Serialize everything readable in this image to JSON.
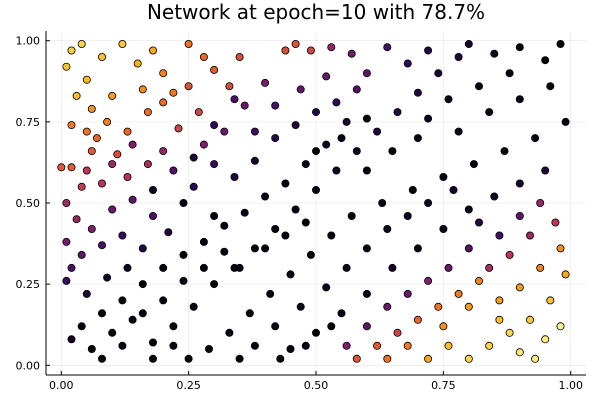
{
  "chart_data": {
    "type": "scatter",
    "title": "Network at epoch=10 with 78.7%",
    "xlabel": "",
    "ylabel": "",
    "xlim": [
      -0.03,
      1.03
    ],
    "ylim": [
      -0.03,
      1.03
    ],
    "xticks": [
      0.0,
      0.25,
      0.5,
      0.75,
      1.0
    ],
    "xtick_labels": [
      "0.00",
      "0.25",
      "0.50",
      "0.75",
      "1.00"
    ],
    "yticks": [
      0.0,
      0.25,
      0.5,
      0.75,
      1.0
    ],
    "ytick_labels": [
      "0.00",
      "0.25",
      "0.50",
      "0.75",
      "1.00"
    ],
    "grid": true,
    "legend": "none",
    "colormap": "inferno",
    "colormap_stops": [
      "#000004",
      "#320a5e",
      "#781c6d",
      "#bc3754",
      "#ed6925",
      "#fbb61a",
      "#fcffa4"
    ],
    "points": [
      [
        0.02,
        0.97,
        0.88
      ],
      [
        0.04,
        0.99,
        0.9
      ],
      [
        0.01,
        0.92,
        0.86
      ],
      [
        0.05,
        0.88,
        0.84
      ],
      [
        0.08,
        0.95,
        0.86
      ],
      [
        0.12,
        0.99,
        0.87
      ],
      [
        0.15,
        0.93,
        0.82
      ],
      [
        0.18,
        0.97,
        0.8
      ],
      [
        0.2,
        0.9,
        0.72
      ],
      [
        0.25,
        0.99,
        0.68
      ],
      [
        0.28,
        0.95,
        0.66
      ],
      [
        0.3,
        0.91,
        0.63
      ],
      [
        0.22,
        0.84,
        0.7
      ],
      [
        0.16,
        0.85,
        0.74
      ],
      [
        0.1,
        0.83,
        0.78
      ],
      [
        0.06,
        0.79,
        0.76
      ],
      [
        0.03,
        0.83,
        0.85
      ],
      [
        0.02,
        0.74,
        0.7
      ],
      [
        0.05,
        0.72,
        0.69
      ],
      [
        0.09,
        0.75,
        0.71
      ],
      [
        0.13,
        0.72,
        0.66
      ],
      [
        0.17,
        0.78,
        0.67
      ],
      [
        0.2,
        0.81,
        0.67
      ],
      [
        0.25,
        0.86,
        0.6
      ],
      [
        0.33,
        0.86,
        0.58
      ],
      [
        0.35,
        0.95,
        0.58
      ],
      [
        0.27,
        0.78,
        0.55
      ],
      [
        0.23,
        0.73,
        0.55
      ],
      [
        0.06,
        0.66,
        0.62
      ],
      [
        0.11,
        0.65,
        0.58
      ],
      [
        0.0,
        0.61,
        0.62
      ],
      [
        0.02,
        0.61,
        0.62
      ],
      [
        0.04,
        0.55,
        0.52
      ],
      [
        0.08,
        0.56,
        0.5
      ],
      [
        0.13,
        0.58,
        0.48
      ],
      [
        0.17,
        0.62,
        0.45
      ],
      [
        0.2,
        0.66,
        0.4
      ],
      [
        0.28,
        0.68,
        0.35
      ],
      [
        0.32,
        0.72,
        0.3
      ],
      [
        0.36,
        0.8,
        0.3
      ],
      [
        0.4,
        0.87,
        0.34
      ],
      [
        0.44,
        0.97,
        0.58
      ],
      [
        0.46,
        0.99,
        0.6
      ],
      [
        0.49,
        0.97,
        0.55
      ],
      [
        0.53,
        0.98,
        0.4
      ],
      [
        0.57,
        0.96,
        0.32
      ],
      [
        0.6,
        0.9,
        0.27
      ],
      [
        0.58,
        0.85,
        0.25
      ],
      [
        0.52,
        0.89,
        0.3
      ],
      [
        0.47,
        0.85,
        0.28
      ],
      [
        0.42,
        0.8,
        0.22
      ],
      [
        0.38,
        0.72,
        0.2
      ],
      [
        0.01,
        0.5,
        0.42
      ],
      [
        0.03,
        0.45,
        0.4
      ],
      [
        0.06,
        0.42,
        0.35
      ],
      [
        0.1,
        0.48,
        0.3
      ],
      [
        0.14,
        0.51,
        0.27
      ],
      [
        0.18,
        0.46,
        0.22
      ],
      [
        0.01,
        0.38,
        0.33
      ],
      [
        0.04,
        0.34,
        0.28
      ],
      [
        0.08,
        0.37,
        0.22
      ],
      [
        0.12,
        0.4,
        0.18
      ],
      [
        0.16,
        0.36,
        0.12
      ],
      [
        0.21,
        0.41,
        0.1
      ],
      [
        0.02,
        0.3,
        0.22
      ],
      [
        0.01,
        0.26,
        0.18
      ],
      [
        0.05,
        0.22,
        0.1
      ],
      [
        0.09,
        0.27,
        0.08
      ],
      [
        0.13,
        0.3,
        0.05
      ],
      [
        0.22,
        0.6,
        0.25
      ],
      [
        0.26,
        0.55,
        0.15
      ],
      [
        0.3,
        0.62,
        0.18
      ],
      [
        0.34,
        0.58,
        0.1
      ],
      [
        0.38,
        0.63,
        0.08
      ],
      [
        0.42,
        0.7,
        0.12
      ],
      [
        0.46,
        0.74,
        0.1
      ],
      [
        0.5,
        0.78,
        0.12
      ],
      [
        0.54,
        0.81,
        0.15
      ],
      [
        0.56,
        0.75,
        0.08
      ],
      [
        0.52,
        0.68,
        0.05
      ],
      [
        0.48,
        0.62,
        0.04
      ],
      [
        0.44,
        0.56,
        0.03
      ],
      [
        0.4,
        0.52,
        0.04
      ],
      [
        0.36,
        0.47,
        0.03
      ],
      [
        0.32,
        0.43,
        0.02
      ],
      [
        0.28,
        0.38,
        0.02
      ],
      [
        0.24,
        0.34,
        0.02
      ],
      [
        0.2,
        0.3,
        0.02
      ],
      [
        0.16,
        0.25,
        0.02
      ],
      [
        0.12,
        0.2,
        0.02
      ],
      [
        0.08,
        0.16,
        0.02
      ],
      [
        0.04,
        0.12,
        0.03
      ],
      [
        0.02,
        0.08,
        0.04
      ],
      [
        0.06,
        0.05,
        0.02
      ],
      [
        0.1,
        0.1,
        0.02
      ],
      [
        0.14,
        0.14,
        0.02
      ],
      [
        0.18,
        0.07,
        0.02
      ],
      [
        0.22,
        0.12,
        0.02
      ],
      [
        0.26,
        0.18,
        0.02
      ],
      [
        0.3,
        0.25,
        0.02
      ],
      [
        0.34,
        0.3,
        0.02
      ],
      [
        0.38,
        0.36,
        0.02
      ],
      [
        0.42,
        0.42,
        0.02
      ],
      [
        0.46,
        0.48,
        0.02
      ],
      [
        0.5,
        0.54,
        0.03
      ],
      [
        0.54,
        0.6,
        0.05
      ],
      [
        0.58,
        0.66,
        0.06
      ],
      [
        0.62,
        0.72,
        0.1
      ],
      [
        0.66,
        0.78,
        0.12
      ],
      [
        0.7,
        0.84,
        0.1
      ],
      [
        0.74,
        0.9,
        0.08
      ],
      [
        0.78,
        0.95,
        0.1
      ],
      [
        0.64,
        0.98,
        0.22
      ],
      [
        0.68,
        0.93,
        0.15
      ],
      [
        0.72,
        0.97,
        0.12
      ],
      [
        0.8,
        0.99,
        0.08
      ],
      [
        0.85,
        0.96,
        0.05
      ],
      [
        0.9,
        0.98,
        0.03
      ],
      [
        0.95,
        0.94,
        0.02
      ],
      [
        0.98,
        0.99,
        0.02
      ],
      [
        0.88,
        0.9,
        0.02
      ],
      [
        0.82,
        0.86,
        0.02
      ],
      [
        0.76,
        0.82,
        0.04
      ],
      [
        0.72,
        0.76,
        0.05
      ],
      [
        0.78,
        0.72,
        0.03
      ],
      [
        0.84,
        0.78,
        0.02
      ],
      [
        0.9,
        0.82,
        0.02
      ],
      [
        0.96,
        0.86,
        0.02
      ],
      [
        0.99,
        0.75,
        0.02
      ],
      [
        0.93,
        0.7,
        0.02
      ],
      [
        0.87,
        0.66,
        0.02
      ],
      [
        0.81,
        0.62,
        0.02
      ],
      [
        0.75,
        0.58,
        0.02
      ],
      [
        0.69,
        0.54,
        0.02
      ],
      [
        0.63,
        0.5,
        0.02
      ],
      [
        0.57,
        0.46,
        0.02
      ],
      [
        0.53,
        0.4,
        0.02
      ],
      [
        0.49,
        0.34,
        0.02
      ],
      [
        0.45,
        0.28,
        0.02
      ],
      [
        0.41,
        0.22,
        0.02
      ],
      [
        0.37,
        0.16,
        0.02
      ],
      [
        0.33,
        0.1,
        0.02
      ],
      [
        0.29,
        0.05,
        0.02
      ],
      [
        0.25,
        0.02,
        0.02
      ],
      [
        0.35,
        0.02,
        0.02
      ],
      [
        0.45,
        0.05,
        0.02
      ],
      [
        0.5,
        0.1,
        0.02
      ],
      [
        0.55,
        0.16,
        0.03
      ],
      [
        0.6,
        0.22,
        0.04
      ],
      [
        0.65,
        0.3,
        0.05
      ],
      [
        0.7,
        0.36,
        0.03
      ],
      [
        0.75,
        0.42,
        0.03
      ],
      [
        0.8,
        0.48,
        0.04
      ],
      [
        0.85,
        0.52,
        0.06
      ],
      [
        0.9,
        0.56,
        0.08
      ],
      [
        0.95,
        0.6,
        0.1
      ],
      [
        0.42,
        0.12,
        0.03
      ],
      [
        0.47,
        0.18,
        0.03
      ],
      [
        0.52,
        0.24,
        0.04
      ],
      [
        0.56,
        0.3,
        0.03
      ],
      [
        0.6,
        0.36,
        0.03
      ],
      [
        0.64,
        0.42,
        0.04
      ],
      [
        0.68,
        0.46,
        0.05
      ],
      [
        0.72,
        0.5,
        0.06
      ],
      [
        0.77,
        0.54,
        0.08
      ],
      [
        0.82,
        0.44,
        0.12
      ],
      [
        0.86,
        0.4,
        0.2
      ],
      [
        0.9,
        0.46,
        0.28
      ],
      [
        0.94,
        0.5,
        0.4
      ],
      [
        0.97,
        0.44,
        0.5
      ],
      [
        0.92,
        0.4,
        0.42
      ],
      [
        0.88,
        0.34,
        0.5
      ],
      [
        0.84,
        0.3,
        0.45
      ],
      [
        0.8,
        0.36,
        0.25
      ],
      [
        0.76,
        0.3,
        0.3
      ],
      [
        0.72,
        0.26,
        0.35
      ],
      [
        0.68,
        0.22,
        0.3
      ],
      [
        0.64,
        0.18,
        0.3
      ],
      [
        0.6,
        0.12,
        0.28
      ],
      [
        0.56,
        0.06,
        0.35
      ],
      [
        0.58,
        0.02,
        0.6
      ],
      [
        0.62,
        0.06,
        0.62
      ],
      [
        0.66,
        0.1,
        0.55
      ],
      [
        0.7,
        0.14,
        0.65
      ],
      [
        0.74,
        0.18,
        0.68
      ],
      [
        0.78,
        0.22,
        0.7
      ],
      [
        0.82,
        0.26,
        0.72
      ],
      [
        0.86,
        0.2,
        0.78
      ],
      [
        0.9,
        0.24,
        0.78
      ],
      [
        0.94,
        0.3,
        0.72
      ],
      [
        0.98,
        0.36,
        0.74
      ],
      [
        0.99,
        0.28,
        0.8
      ],
      [
        0.96,
        0.2,
        0.86
      ],
      [
        0.92,
        0.14,
        0.88
      ],
      [
        0.88,
        0.1,
        0.9
      ],
      [
        0.84,
        0.06,
        0.9
      ],
      [
        0.8,
        0.02,
        0.9
      ],
      [
        0.76,
        0.06,
        0.85
      ],
      [
        0.72,
        0.02,
        0.8
      ],
      [
        0.68,
        0.06,
        0.7
      ],
      [
        0.64,
        0.02,
        0.68
      ],
      [
        0.9,
        0.04,
        0.95
      ],
      [
        0.95,
        0.08,
        0.96
      ],
      [
        0.98,
        0.12,
        0.97
      ],
      [
        0.93,
        0.02,
        0.95
      ],
      [
        0.86,
        0.14,
        0.85
      ],
      [
        0.8,
        0.18,
        0.78
      ],
      [
        0.75,
        0.12,
        0.75
      ],
      [
        0.3,
        0.46,
        0.02
      ],
      [
        0.24,
        0.5,
        0.03
      ],
      [
        0.18,
        0.54,
        0.06
      ],
      [
        0.26,
        0.64,
        0.1
      ],
      [
        0.3,
        0.74,
        0.15
      ],
      [
        0.34,
        0.82,
        0.22
      ],
      [
        0.14,
        0.68,
        0.35
      ],
      [
        0.1,
        0.62,
        0.42
      ],
      [
        0.05,
        0.6,
        0.5
      ],
      [
        0.07,
        0.7,
        0.65
      ],
      [
        0.6,
        0.6,
        0.02
      ],
      [
        0.65,
        0.66,
        0.02
      ],
      [
        0.7,
        0.7,
        0.02
      ],
      [
        0.6,
        0.76,
        0.03
      ],
      [
        0.55,
        0.7,
        0.03
      ],
      [
        0.5,
        0.66,
        0.02
      ],
      [
        0.35,
        0.3,
        0.02
      ],
      [
        0.4,
        0.36,
        0.02
      ],
      [
        0.44,
        0.4,
        0.02
      ],
      [
        0.48,
        0.44,
        0.02
      ],
      [
        0.38,
        0.06,
        0.02
      ],
      [
        0.43,
        0.02,
        0.02
      ],
      [
        0.48,
        0.06,
        0.02
      ],
      [
        0.53,
        0.12,
        0.02
      ],
      [
        0.2,
        0.2,
        0.02
      ],
      [
        0.16,
        0.16,
        0.02
      ],
      [
        0.24,
        0.26,
        0.02
      ],
      [
        0.28,
        0.3,
        0.02
      ],
      [
        0.32,
        0.35,
        0.02
      ],
      [
        0.12,
        0.06,
        0.02
      ],
      [
        0.08,
        0.02,
        0.02
      ],
      [
        0.18,
        0.02,
        0.02
      ],
      [
        0.22,
        0.06,
        0.02
      ]
    ]
  }
}
